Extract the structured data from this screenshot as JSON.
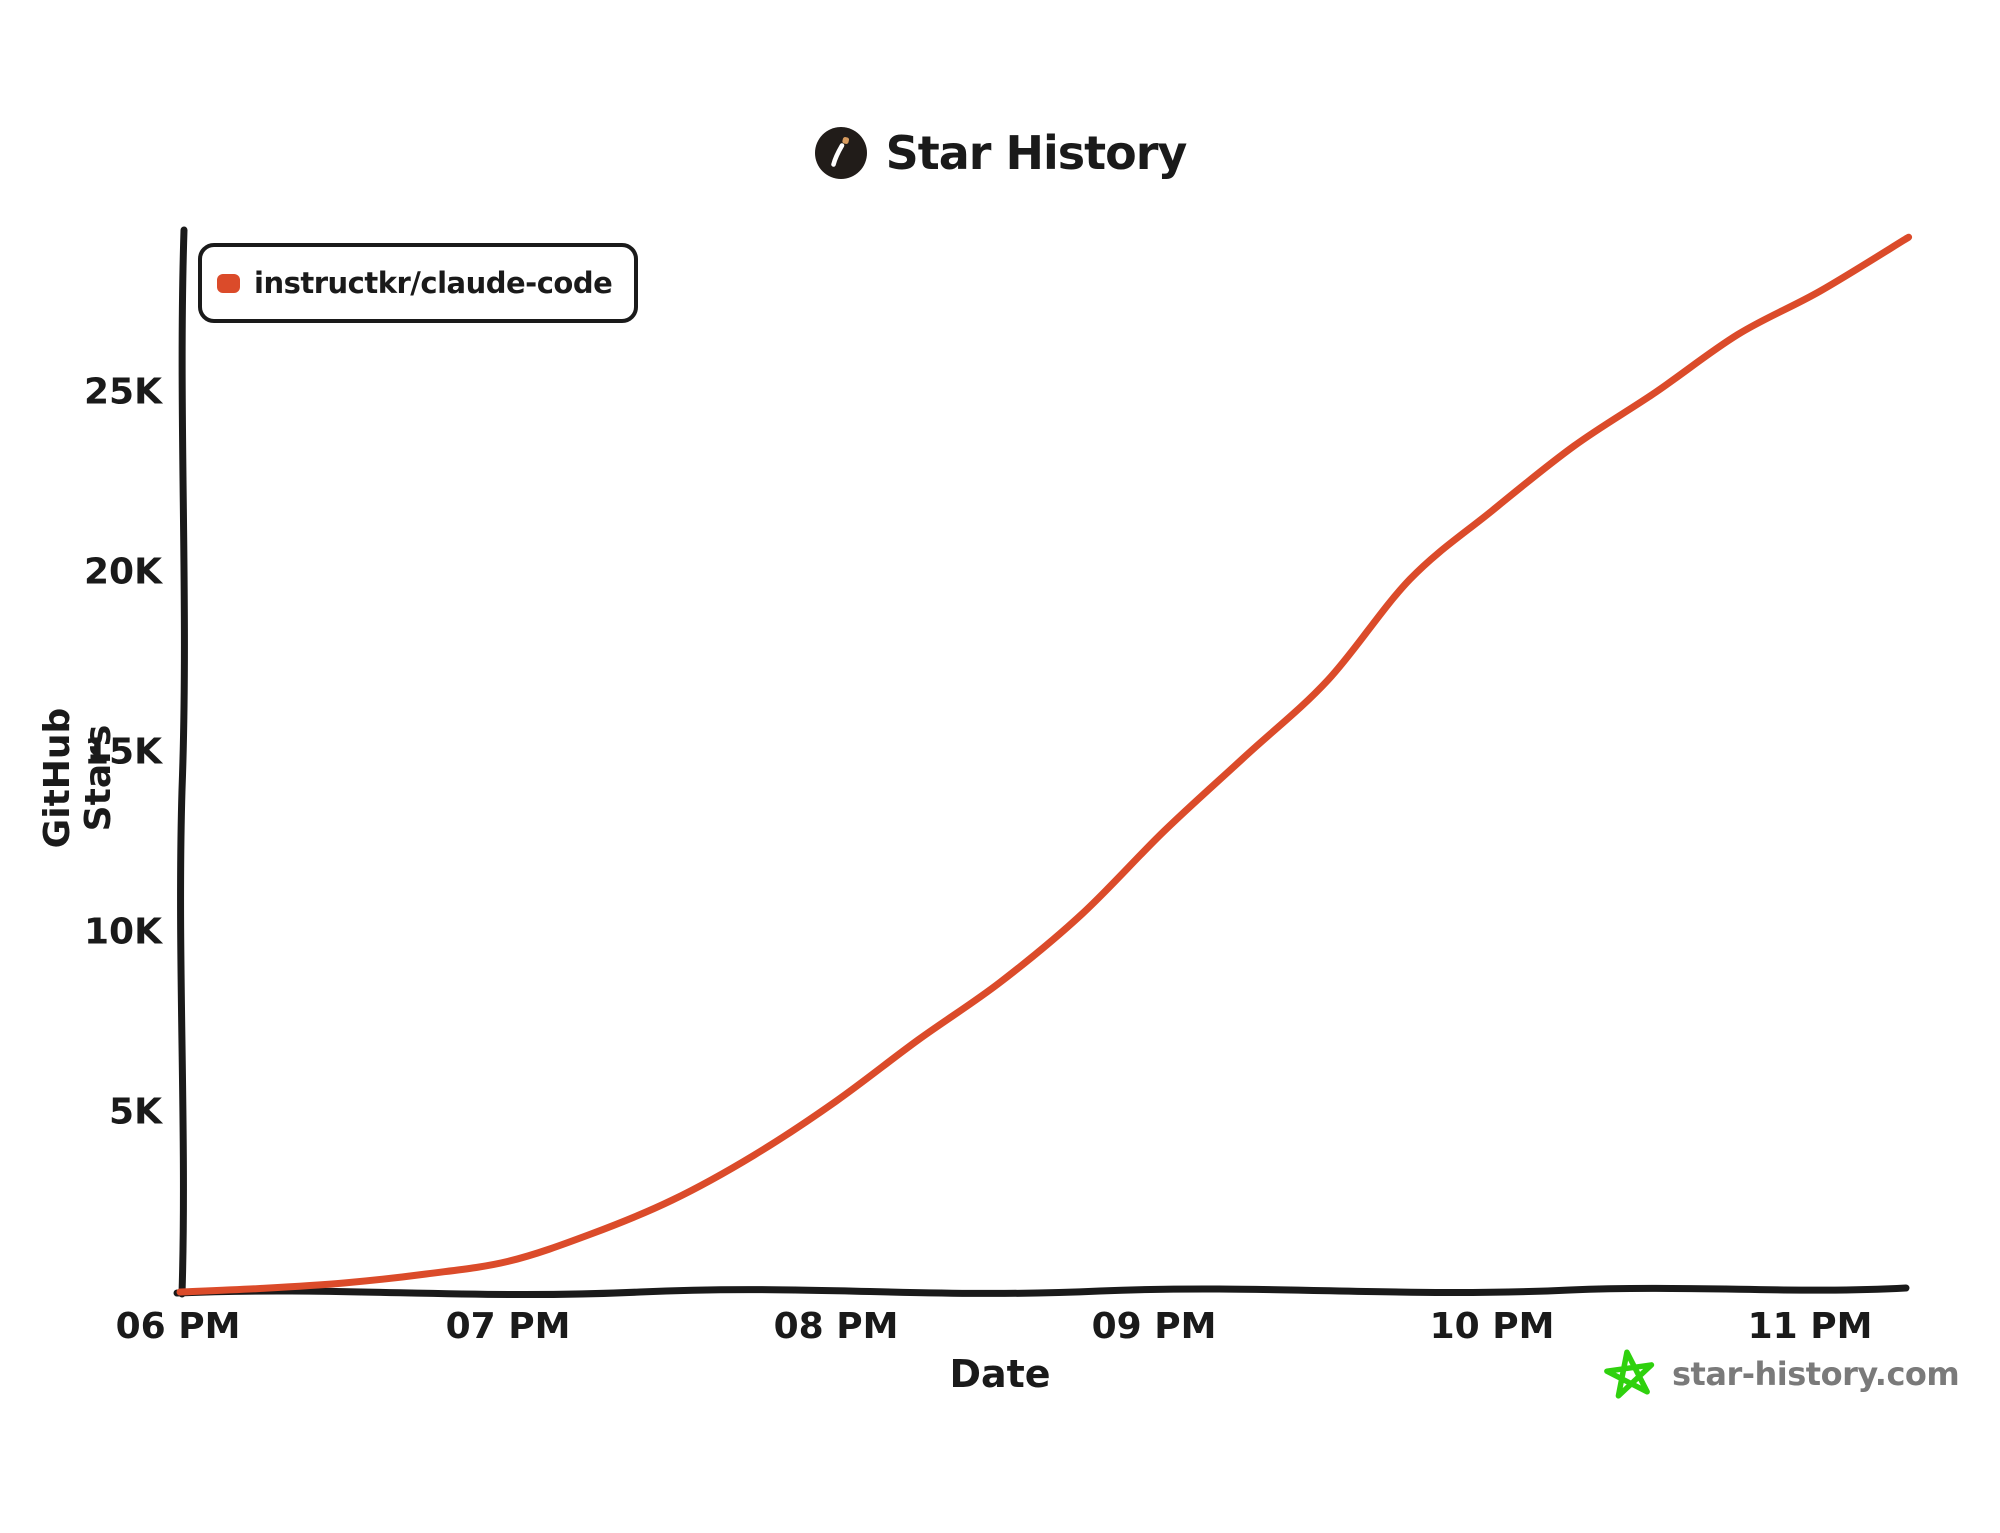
{
  "page": {
    "background": "#ffffff",
    "ink_color": "#1a1a1a"
  },
  "header": {
    "title": "Star History",
    "logo": {
      "icon": "star-history-logo-icon",
      "circle_color": "#211c19",
      "slash_color": "#ffffff",
      "tip_color": "#d79b5e"
    }
  },
  "legend": {
    "items": [
      {
        "label": "instructkr/claude-code",
        "marker_color": "#db4b2a"
      }
    ]
  },
  "watermark": {
    "label": "star-history.com",
    "icon": "green-star-icon",
    "star_color": "#2fd10e",
    "text_color": "#7a7a7a"
  },
  "chart_data": {
    "type": "line",
    "title": "Star History",
    "xlabel": "Date",
    "ylabel": "GitHub Stars",
    "x_tick_labels": [
      "06 PM",
      "07 PM",
      "08 PM",
      "09 PM",
      "10 PM",
      "11 PM"
    ],
    "y_tick_labels_top_to_bottom": [
      "25K",
      "20K",
      "15K",
      "10K",
      "5K"
    ],
    "y_tick_values": [
      25000,
      20000,
      15000,
      10000,
      5000
    ],
    "xlim_hours_24h": [
      18.0,
      23.35
    ],
    "ylim": [
      0,
      29500
    ],
    "grid": false,
    "legend_position": "top-left",
    "line_color": "#db4b2a",
    "series": [
      {
        "name": "instructkr/claude-code",
        "color": "#db4b2a",
        "points": [
          {
            "time": "6:00 PM",
            "t": 18.0,
            "stars": 0
          },
          {
            "time": "6:15 PM",
            "t": 18.25,
            "stars": 100
          },
          {
            "time": "6:30 PM",
            "t": 18.5,
            "stars": 250
          },
          {
            "time": "6:45 PM",
            "t": 18.75,
            "stars": 500
          },
          {
            "time": "7:00 PM",
            "t": 19.0,
            "stars": 850
          },
          {
            "time": "7:15 PM",
            "t": 19.25,
            "stars": 1600
          },
          {
            "time": "7:30 PM",
            "t": 19.5,
            "stars": 2550
          },
          {
            "time": "7:45 PM",
            "t": 19.75,
            "stars": 3800
          },
          {
            "time": "8:00 PM",
            "t": 20.0,
            "stars": 5300
          },
          {
            "time": "8:15 PM",
            "t": 20.25,
            "stars": 7000
          },
          {
            "time": "8:30 PM",
            "t": 20.5,
            "stars": 8600
          },
          {
            "time": "8:45 PM",
            "t": 20.75,
            "stars": 10500
          },
          {
            "time": "9:00 PM",
            "t": 21.0,
            "stars": 12800
          },
          {
            "time": "9:15 PM",
            "t": 21.25,
            "stars": 14900
          },
          {
            "time": "9:30 PM",
            "t": 21.5,
            "stars": 17000
          },
          {
            "time": "9:45 PM",
            "t": 21.75,
            "stars": 19800
          },
          {
            "time": "10:00 PM",
            "t": 22.0,
            "stars": 21700
          },
          {
            "time": "10:15 PM",
            "t": 22.25,
            "stars": 23500
          },
          {
            "time": "10:30 PM",
            "t": 22.5,
            "stars": 25000
          },
          {
            "time": "10:45 PM",
            "t": 22.75,
            "stars": 26600
          },
          {
            "time": "11:00 PM",
            "t": 23.0,
            "stars": 27800
          },
          {
            "time": "11:16 PM",
            "t": 23.27,
            "stars": 29300
          }
        ]
      }
    ]
  }
}
